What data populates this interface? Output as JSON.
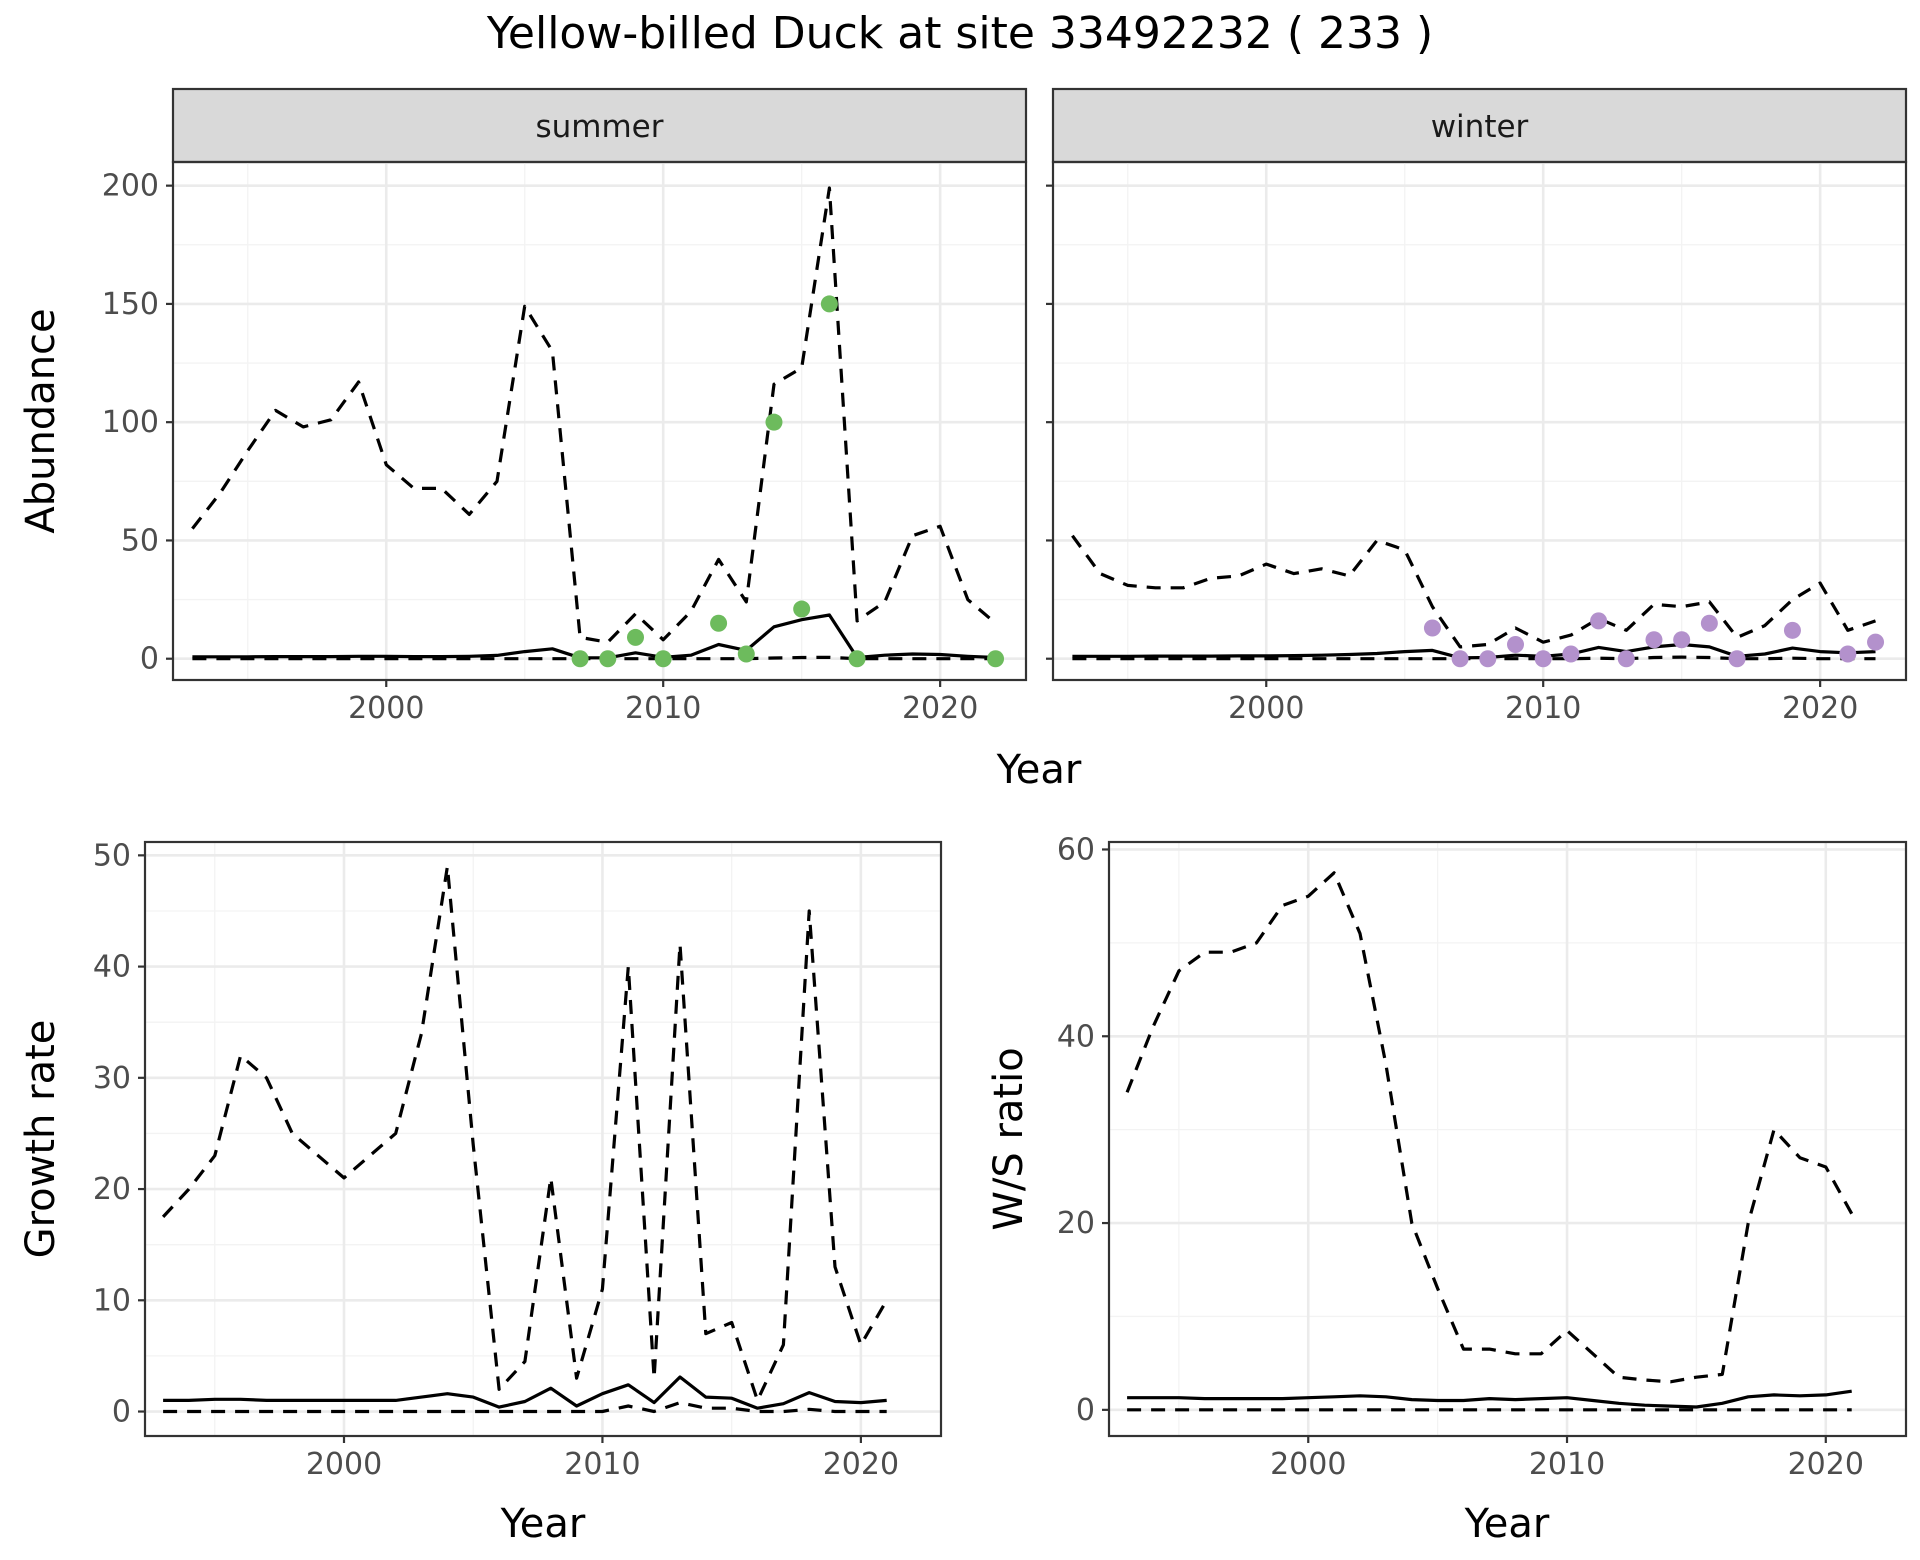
{
  "figure": {
    "title": "Yellow-billed Duck at site 33492232 ( 233 )"
  },
  "colors": {
    "summer_points": "#6dbb5d",
    "winter_points": "#b391cc",
    "lines": "#000000",
    "strip_background": "#d9d9d9",
    "grid": "#ebebeb"
  },
  "chart_data": [
    {
      "id": "abundance",
      "type": "line",
      "facet_strips": [
        "summer",
        "winter"
      ],
      "xlabel": "Year",
      "ylabel": "Abundance",
      "xlim": [
        1992.3,
        2023.1
      ],
      "ylim": [
        -9,
        210
      ],
      "xticks": [
        2000,
        2010,
        2020
      ],
      "yticks": [
        0,
        50,
        100,
        150,
        200
      ],
      "grid": true,
      "facets": [
        {
          "strip": "summer",
          "point_color": "#6dbb5d",
          "lines": {
            "mean": {
              "x": [
                1993,
                1994,
                1995,
                1996,
                1997,
                1998,
                1999,
                2000,
                2001,
                2002,
                2003,
                2004,
                2005,
                2006,
                2007,
                2008,
                2009,
                2010,
                2011,
                2012,
                2013,
                2014,
                2015,
                2016,
                2017,
                2018,
                2019,
                2020,
                2021,
                2022
              ],
              "y": [
                0.8,
                0.8,
                0.8,
                0.9,
                0.9,
                0.9,
                1,
                1,
                0.9,
                0.9,
                1,
                1.4,
                3,
                4.2,
                0.4,
                0.4,
                2.5,
                0.6,
                1.5,
                6,
                3.5,
                13.5,
                16.5,
                18.5,
                0.5,
                1.5,
                2,
                1.8,
                1,
                0.5
              ]
            },
            "upper": {
              "x": [
                1993,
                1994,
                1995,
                1996,
                1997,
                1998,
                1999,
                2000,
                2001,
                2002,
                2003,
                2004,
                2005,
                2006,
                2007,
                2008,
                2009,
                2010,
                2011,
                2012,
                2013,
                2014,
                2015,
                2016,
                2017,
                2018,
                2019,
                2020,
                2021,
                2022
              ],
              "y": [
                55,
                70,
                88,
                105,
                98,
                101,
                117,
                82,
                72,
                72,
                61,
                75,
                149,
                130,
                9,
                7,
                19,
                8,
                20,
                42,
                24,
                116,
                123,
                199,
                16,
                24,
                52,
                56,
                25,
                15
              ]
            },
            "lower": {
              "x": [
                1993,
                1994,
                1995,
                1996,
                1997,
                1998,
                1999,
                2000,
                2001,
                2002,
                2003,
                2004,
                2005,
                2006,
                2007,
                2008,
                2009,
                2010,
                2011,
                2012,
                2013,
                2014,
                2015,
                2016,
                2017,
                2018,
                2019,
                2020,
                2021,
                2022
              ],
              "y": [
                0,
                0,
                0,
                0,
                0,
                0,
                0,
                0,
                0,
                0,
                0,
                0,
                0,
                0,
                0,
                0,
                0,
                0,
                0,
                0,
                0,
                0.3,
                0.5,
                0.6,
                0,
                0,
                0,
                0,
                0,
                0
              ]
            }
          },
          "points": {
            "x": [
              2007,
              2008,
              2009,
              2010,
              2012,
              2013,
              2014,
              2015,
              2016,
              2017,
              2022
            ],
            "y": [
              0,
              0,
              9,
              0,
              15,
              2,
              100,
              21,
              150,
              0,
              0
            ]
          }
        },
        {
          "strip": "winter",
          "point_color": "#b391cc",
          "lines": {
            "mean": {
              "x": [
                1993,
                1994,
                1995,
                1996,
                1997,
                1998,
                1999,
                2000,
                2001,
                2002,
                2003,
                2004,
                2005,
                2006,
                2007,
                2008,
                2009,
                2010,
                2011,
                2012,
                2013,
                2014,
                2015,
                2016,
                2017,
                2018,
                2019,
                2020,
                2021,
                2022
              ],
              "y": [
                1,
                1,
                1,
                1.1,
                1.1,
                1.1,
                1.2,
                1.2,
                1.3,
                1.5,
                1.8,
                2.2,
                3,
                3.5,
                0.4,
                0.5,
                1.5,
                1,
                2,
                4.8,
                3,
                5,
                6,
                5,
                1,
                2,
                4.5,
                3,
                2.5,
                3
              ]
            },
            "upper": {
              "x": [
                1993,
                1994,
                1995,
                1996,
                1997,
                1998,
                1999,
                2000,
                2001,
                2002,
                2003,
                2004,
                2005,
                2006,
                2007,
                2008,
                2009,
                2010,
                2011,
                2012,
                2013,
                2014,
                2015,
                2016,
                2017,
                2018,
                2019,
                2020,
                2021,
                2022
              ],
              "y": [
                52,
                36,
                31,
                30,
                30,
                34,
                35,
                40,
                36,
                38,
                35,
                50,
                46,
                22,
                5,
                6,
                13,
                7,
                10,
                17,
                12,
                23,
                22,
                24,
                9,
                14,
                25,
                32,
                12,
                16
              ]
            },
            "lower": {
              "x": [
                1993,
                1994,
                1995,
                1996,
                1997,
                1998,
                1999,
                2000,
                2001,
                2002,
                2003,
                2004,
                2005,
                2006,
                2007,
                2008,
                2009,
                2010,
                2011,
                2012,
                2013,
                2014,
                2015,
                2016,
                2017,
                2018,
                2019,
                2020,
                2021,
                2022
              ],
              "y": [
                0,
                0,
                0,
                0,
                0,
                0,
                0,
                0,
                0,
                0,
                0,
                0,
                0,
                0,
                0,
                0,
                0,
                0,
                0,
                0.2,
                0,
                0.5,
                0.7,
                0.5,
                0,
                0,
                0.2,
                0,
                0,
                0
              ]
            }
          },
          "points": {
            "x": [
              2006,
              2007,
              2008,
              2009,
              2010,
              2011,
              2012,
              2013,
              2014,
              2015,
              2016,
              2017,
              2019,
              2021,
              2022
            ],
            "y": [
              13,
              0,
              0,
              6,
              0,
              2,
              16,
              0,
              8,
              8,
              15,
              0,
              12,
              2,
              7
            ]
          }
        }
      ]
    },
    {
      "id": "growth",
      "type": "line",
      "xlabel": "Year",
      "ylabel": "Growth rate",
      "xlim": [
        1992.3,
        2023.1
      ],
      "ylim": [
        -2.2,
        51.2
      ],
      "xticks": [
        2000,
        2010,
        2020
      ],
      "yticks": [
        0,
        10,
        20,
        30,
        40,
        50
      ],
      "grid": true,
      "lines": {
        "mean": {
          "x": [
            1993,
            1994,
            1995,
            1996,
            1997,
            1998,
            1999,
            2000,
            2001,
            2002,
            2003,
            2004,
            2005,
            2006,
            2007,
            2008,
            2009,
            2010,
            2011,
            2012,
            2013,
            2014,
            2015,
            2016,
            2017,
            2018,
            2019,
            2020,
            2021
          ],
          "y": [
            1,
            1,
            1.1,
            1.1,
            1,
            1,
            1,
            1,
            1,
            1,
            1.3,
            1.6,
            1.3,
            0.4,
            0.9,
            2.1,
            0.5,
            1.6,
            2.4,
            0.8,
            3.1,
            1.3,
            1.2,
            0.3,
            0.7,
            1.7,
            0.9,
            0.8,
            1
          ]
        },
        "upper": {
          "x": [
            1993,
            1994,
            1995,
            1996,
            1997,
            1998,
            1999,
            2000,
            2001,
            2002,
            2003,
            2004,
            2005,
            2006,
            2007,
            2008,
            2009,
            2010,
            2011,
            2012,
            2013,
            2014,
            2015,
            2016,
            2017,
            2018,
            2019,
            2020,
            2021
          ],
          "y": [
            17.5,
            20,
            23,
            32,
            30,
            25,
            23,
            21,
            23,
            25,
            34,
            49,
            24,
            2,
            4.5,
            21,
            3,
            11,
            40,
            3,
            42,
            7,
            8,
            1,
            6,
            45,
            13,
            6,
            10
          ]
        },
        "lower": {
          "x": [
            1993,
            1994,
            1995,
            1996,
            1997,
            1998,
            1999,
            2000,
            2001,
            2002,
            2003,
            2004,
            2005,
            2006,
            2007,
            2008,
            2009,
            2010,
            2011,
            2012,
            2013,
            2014,
            2015,
            2016,
            2017,
            2018,
            2019,
            2020,
            2021
          ],
          "y": [
            0,
            0,
            0,
            0,
            0,
            0,
            0,
            0,
            0,
            0,
            0,
            0,
            0,
            0,
            0,
            0,
            0,
            0,
            0.5,
            0,
            0.8,
            0.3,
            0.3,
            0,
            0,
            0.2,
            0,
            0,
            0
          ]
        }
      }
    },
    {
      "id": "ratio",
      "type": "line",
      "xlabel": "Year",
      "ylabel": "W/S ratio",
      "xlim": [
        1992.3,
        2023.1
      ],
      "ylim": [
        -2.8,
        60.8
      ],
      "xticks": [
        2000,
        2010,
        2020
      ],
      "yticks": [
        0,
        20,
        40,
        60
      ],
      "grid": true,
      "lines": {
        "mean": {
          "x": [
            1993,
            1994,
            1995,
            1996,
            1997,
            1998,
            1999,
            2000,
            2001,
            2002,
            2003,
            2004,
            2005,
            2006,
            2007,
            2008,
            2009,
            2010,
            2011,
            2012,
            2013,
            2014,
            2015,
            2016,
            2017,
            2018,
            2019,
            2020,
            2021
          ],
          "y": [
            1.3,
            1.3,
            1.3,
            1.2,
            1.2,
            1.2,
            1.2,
            1.3,
            1.4,
            1.5,
            1.4,
            1.1,
            1,
            1,
            1.2,
            1.1,
            1.2,
            1.3,
            1,
            0.7,
            0.5,
            0.4,
            0.3,
            0.7,
            1.4,
            1.6,
            1.5,
            1.6,
            2
          ]
        },
        "upper": {
          "x": [
            1993,
            1994,
            1995,
            1996,
            1997,
            1998,
            1999,
            2000,
            2001,
            2002,
            2003,
            2004,
            2005,
            2006,
            2007,
            2008,
            2009,
            2010,
            2011,
            2012,
            2013,
            2014,
            2015,
            2016,
            2017,
            2018,
            2019,
            2020,
            2021
          ],
          "y": [
            34,
            41,
            47,
            49,
            49,
            50,
            54,
            55,
            57.5,
            51,
            37,
            20,
            13,
            6.5,
            6.5,
            6,
            6,
            8.5,
            6,
            3.5,
            3.2,
            3,
            3.5,
            3.8,
            20,
            30,
            27,
            26,
            21
          ]
        },
        "lower": {
          "x": [
            1993,
            1994,
            1995,
            1996,
            1997,
            1998,
            1999,
            2000,
            2001,
            2002,
            2003,
            2004,
            2005,
            2006,
            2007,
            2008,
            2009,
            2010,
            2011,
            2012,
            2013,
            2014,
            2015,
            2016,
            2017,
            2018,
            2019,
            2020,
            2021
          ],
          "y": [
            0,
            0,
            0,
            0,
            0,
            0,
            0,
            0,
            0,
            0,
            0,
            0,
            0,
            0,
            0,
            0,
            0,
            0,
            0,
            0,
            0,
            0,
            0,
            0,
            0,
            0,
            0,
            0,
            0
          ]
        }
      }
    }
  ]
}
